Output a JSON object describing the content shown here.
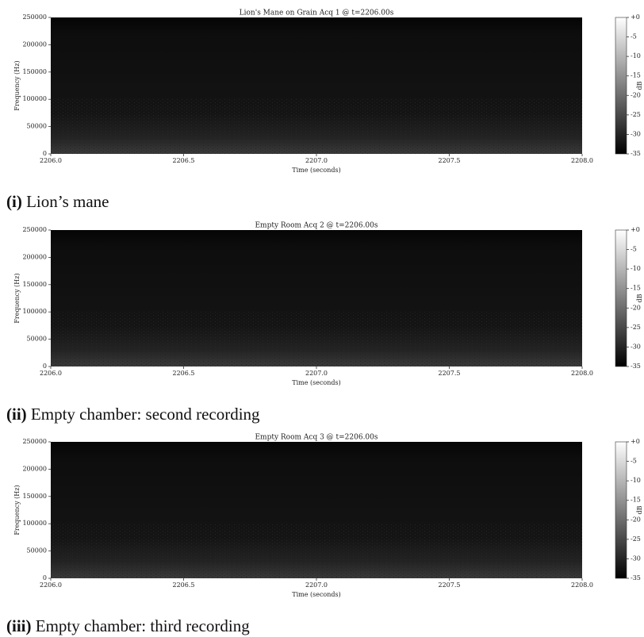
{
  "chart_data": [
    {
      "type": "spectrogram",
      "title": "Lion's Mane on Grain Acq 1 @ t=2206.00s",
      "xlabel": "Time (seconds)",
      "ylabel": "Frequency (Hz)",
      "xlim": [
        2206,
        2208
      ],
      "xticks": [
        {
          "value": 2206,
          "label": "2206.0"
        },
        {
          "value": 2206.5,
          "label": "2206.5"
        },
        {
          "value": 2207,
          "label": "2207.0"
        },
        {
          "value": 2207.5,
          "label": "2207.5"
        },
        {
          "value": 2208,
          "label": "2208.0"
        }
      ],
      "ylim": [
        0,
        250000
      ],
      "yticks": [
        0,
        50000,
        100000,
        150000,
        200000,
        250000
      ],
      "colorbar": {
        "label": "dB",
        "lim": [
          -35,
          0
        ],
        "ticks": [
          {
            "value": 0,
            "label": "+0"
          },
          -5,
          -10,
          -15,
          -20,
          -25,
          -30,
          -35
        ]
      },
      "caption_label": "(i)",
      "caption": "Lion’s mane"
    },
    {
      "type": "spectrogram",
      "title": "Empty Room Acq 2 @ t=2206.00s",
      "xlabel": "Time (seconds)",
      "ylabel": "Frequency (Hz)",
      "xlim": [
        2206,
        2208
      ],
      "xticks": [
        {
          "value": 2206,
          "label": "2206.0"
        },
        {
          "value": 2206.5,
          "label": "2206.5"
        },
        {
          "value": 2207,
          "label": "2207.0"
        },
        {
          "value": 2207.5,
          "label": "2207.5"
        },
        {
          "value": 2208,
          "label": "2208.0"
        }
      ],
      "ylim": [
        0,
        250000
      ],
      "yticks": [
        0,
        50000,
        100000,
        150000,
        200000,
        250000
      ],
      "colorbar": {
        "label": "dB",
        "lim": [
          -35,
          0
        ],
        "ticks": [
          {
            "value": 0,
            "label": "+0"
          },
          -5,
          -10,
          -15,
          -20,
          -25,
          -30,
          -35
        ]
      },
      "caption_label": "(ii)",
      "caption": "Empty chamber: second recording"
    },
    {
      "type": "spectrogram",
      "title": "Empty Room Acq 3 @ t=2206.00s",
      "xlabel": "Time (seconds)",
      "ylabel": "Frequency (Hz)",
      "xlim": [
        2206,
        2208
      ],
      "xticks": [
        {
          "value": 2206,
          "label": "2206.0"
        },
        {
          "value": 2206.5,
          "label": "2206.5"
        },
        {
          "value": 2207,
          "label": "2207.0"
        },
        {
          "value": 2207.5,
          "label": "2207.5"
        },
        {
          "value": 2208,
          "label": "2208.0"
        }
      ],
      "ylim": [
        0,
        250000
      ],
      "yticks": [
        0,
        50000,
        100000,
        150000,
        200000,
        250000
      ],
      "colorbar": {
        "label": "dB",
        "lim": [
          -35,
          0
        ],
        "ticks": [
          {
            "value": 0,
            "label": "+0"
          },
          -5,
          -10,
          -15,
          -20,
          -25,
          -30,
          -35
        ]
      },
      "caption_label": "(iii)",
      "caption": "Empty chamber: third recording"
    }
  ]
}
